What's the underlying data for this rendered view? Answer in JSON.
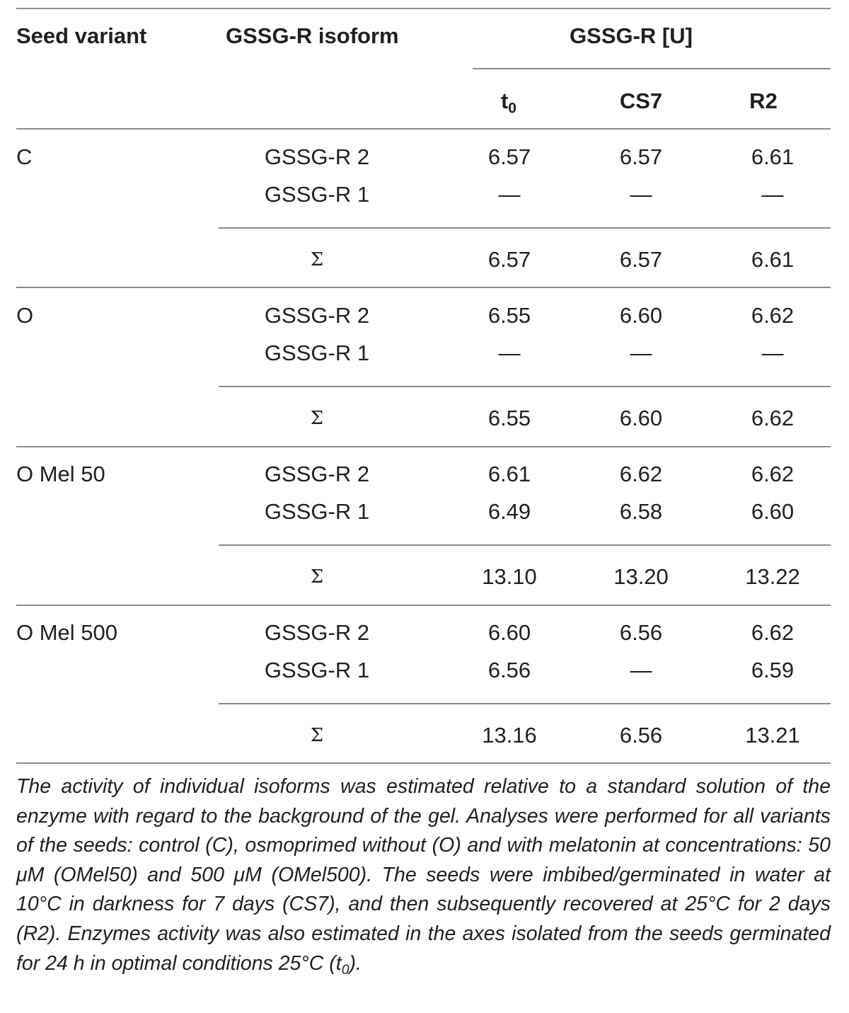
{
  "table": {
    "header": {
      "seed_variant": "Seed variant",
      "isoform": "GSSG-R isoform",
      "group": "GSSG-R [U]",
      "col_t0_base": "t",
      "col_t0_sub": "0",
      "col_cs7": "CS7",
      "col_r2": "R2"
    },
    "groups": [
      {
        "variant": "C",
        "rows": [
          {
            "isoform": "GSSG-R 2",
            "t0": "6.57",
            "cs7": "6.57",
            "r2": "6.61"
          },
          {
            "isoform": "GSSG-R 1",
            "t0": "—",
            "cs7": "—",
            "r2": "—"
          }
        ],
        "sum": {
          "label": "Σ",
          "t0": "6.57",
          "cs7": "6.57",
          "r2": "6.61"
        }
      },
      {
        "variant": "O",
        "rows": [
          {
            "isoform": "GSSG-R 2",
            "t0": "6.55",
            "cs7": "6.60",
            "r2": "6.62"
          },
          {
            "isoform": "GSSG-R 1",
            "t0": "—",
            "cs7": "—",
            "r2": "—"
          }
        ],
        "sum": {
          "label": "Σ",
          "t0": "6.55",
          "cs7": "6.60",
          "r2": "6.62"
        }
      },
      {
        "variant": "O Mel 50",
        "rows": [
          {
            "isoform": "GSSG-R 2",
            "t0": "6.61",
            "cs7": "6.62",
            "r2": "6.62"
          },
          {
            "isoform": "GSSG-R 1",
            "t0": "6.49",
            "cs7": "6.58",
            "r2": "6.60"
          }
        ],
        "sum": {
          "label": "Σ",
          "t0": "13.10",
          "cs7": "13.20",
          "r2": "13.22"
        }
      },
      {
        "variant": "O Mel 500",
        "rows": [
          {
            "isoform": "GSSG-R 2",
            "t0": "6.60",
            "cs7": "6.56",
            "r2": "6.62"
          },
          {
            "isoform": "GSSG-R 1",
            "t0": "6.56",
            "cs7": "—",
            "r2": "6.59"
          }
        ],
        "sum": {
          "label": "Σ",
          "t0": "13.16",
          "cs7": "6.56",
          "r2": "13.21"
        }
      }
    ]
  },
  "footnote": {
    "text": "The activity of individual isoforms was estimated relative to a standard solution of the enzyme with regard to the background of the gel. Analyses were performed for all variants of the seeds: control (C), osmoprimed without (O) and with melatonin at concentrations: 50 μM (OMel50) and 500 μM (OMel500). The seeds were imbibed/germinated in water at 10°C in darkness for 7 days (CS7), and then subsequently recovered at 25°C for 2 days (R2). Enzymes activity was also estimated in the axes isolated from the seeds germinated for 24 h in optimal conditions 25°C (t",
    "end_sub": "0",
    "end_tail": ")."
  }
}
